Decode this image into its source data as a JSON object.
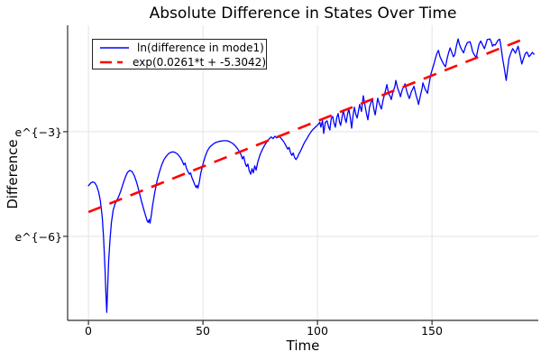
{
  "title": "Absolute Difference in States Over Time",
  "chart_data": {
    "type": "line",
    "title": "Absolute Difference in States Over Time",
    "xlabel": "Time",
    "ylabel": "Difference",
    "yscale": "log-e",
    "grid": true,
    "xlim": [
      -9.1,
      196.4
    ],
    "ylim_ln": [
      -8.41,
      0.05
    ],
    "xticks": [
      {
        "value": 0,
        "label": "0"
      },
      {
        "value": 50,
        "label": "50"
      },
      {
        "value": 100,
        "label": "100"
      },
      {
        "value": 150,
        "label": "150"
      }
    ],
    "yticks": [
      {
        "value": -3,
        "label": "e^{−3}"
      },
      {
        "value": -6,
        "label": "e^{−6}"
      }
    ],
    "legend": {
      "position": "top-left",
      "entries": [
        {
          "label": "ln(difference in mode1)",
          "color": "#0000ff",
          "style": "solid"
        },
        {
          "label": "exp(0.0261*t + -5.3042)",
          "color": "#ff0000",
          "style": "dash"
        }
      ]
    },
    "style": {
      "grid_color": "#e3e3e3",
      "spine_color": "#2f2f2f",
      "background": "#ffffff"
    },
    "series": [
      {
        "name": "ln(difference in mode1)",
        "type": "line",
        "color": "#0000ff",
        "note": "values are ln(|difference|), sampled from plot",
        "points": [
          [
            0,
            -4.55
          ],
          [
            1,
            -4.47
          ],
          [
            2,
            -4.44
          ],
          [
            2.8,
            -4.47
          ],
          [
            3.6,
            -4.56
          ],
          [
            4.4,
            -4.72
          ],
          [
            5.2,
            -4.98
          ],
          [
            6,
            -5.45
          ],
          [
            6.6,
            -6.05
          ],
          [
            7.2,
            -6.9
          ],
          [
            7.6,
            -7.6
          ],
          [
            8,
            -8.18
          ],
          [
            8.4,
            -7.4
          ],
          [
            8.8,
            -6.7
          ],
          [
            9.4,
            -6.1
          ],
          [
            10,
            -5.62
          ],
          [
            10.8,
            -5.25
          ],
          [
            11.6,
            -5.07
          ],
          [
            12.4,
            -4.97
          ],
          [
            13.2,
            -4.86
          ],
          [
            14,
            -4.72
          ],
          [
            15,
            -4.52
          ],
          [
            16,
            -4.32
          ],
          [
            17,
            -4.17
          ],
          [
            18,
            -4.11
          ],
          [
            19,
            -4.14
          ],
          [
            20,
            -4.26
          ],
          [
            21,
            -4.45
          ],
          [
            22,
            -4.69
          ],
          [
            23,
            -4.95
          ],
          [
            24,
            -5.2
          ],
          [
            25,
            -5.42
          ],
          [
            25.6,
            -5.55
          ],
          [
            26.1,
            -5.6
          ],
          [
            26.5,
            -5.52
          ],
          [
            26.9,
            -5.62
          ],
          [
            27.4,
            -5.42
          ],
          [
            28,
            -5.12
          ],
          [
            29,
            -4.72
          ],
          [
            30,
            -4.4
          ],
          [
            31,
            -4.15
          ],
          [
            32,
            -3.95
          ],
          [
            33,
            -3.8
          ],
          [
            34,
            -3.7
          ],
          [
            35,
            -3.63
          ],
          [
            36,
            -3.59
          ],
          [
            37,
            -3.58
          ],
          [
            38,
            -3.6
          ],
          [
            39,
            -3.65
          ],
          [
            40,
            -3.73
          ],
          [
            41,
            -3.85
          ],
          [
            41.6,
            -3.95
          ],
          [
            42.2,
            -3.9
          ],
          [
            42.8,
            -4.05
          ],
          [
            43.4,
            -4.14
          ],
          [
            44,
            -4.22
          ],
          [
            44.6,
            -4.18
          ],
          [
            45.2,
            -4.32
          ],
          [
            45.8,
            -4.42
          ],
          [
            46.4,
            -4.52
          ],
          [
            47,
            -4.6
          ],
          [
            47.4,
            -4.54
          ],
          [
            47.8,
            -4.62
          ],
          [
            48.4,
            -4.44
          ],
          [
            49,
            -4.2
          ],
          [
            50,
            -3.93
          ],
          [
            51,
            -3.7
          ],
          [
            52,
            -3.54
          ],
          [
            53,
            -3.44
          ],
          [
            54,
            -3.38
          ],
          [
            55,
            -3.33
          ],
          [
            56,
            -3.3
          ],
          [
            57,
            -3.28
          ],
          [
            58,
            -3.27
          ],
          [
            59,
            -3.26
          ],
          [
            60,
            -3.26
          ],
          [
            61,
            -3.27
          ],
          [
            62,
            -3.3
          ],
          [
            63,
            -3.34
          ],
          [
            64,
            -3.4
          ],
          [
            65,
            -3.48
          ],
          [
            66,
            -3.58
          ],
          [
            66.6,
            -3.66
          ],
          [
            67.2,
            -3.78
          ],
          [
            67.8,
            -3.71
          ],
          [
            68.4,
            -3.9
          ],
          [
            69,
            -4.0
          ],
          [
            69.6,
            -3.93
          ],
          [
            70.2,
            -4.12
          ],
          [
            70.8,
            -4.22
          ],
          [
            71.4,
            -4.06
          ],
          [
            72,
            -4.18
          ],
          [
            72.6,
            -3.98
          ],
          [
            73.2,
            -4.1
          ],
          [
            73.8,
            -3.9
          ],
          [
            74.4,
            -3.77
          ],
          [
            75,
            -3.65
          ],
          [
            76,
            -3.5
          ],
          [
            77,
            -3.38
          ],
          [
            78,
            -3.28
          ],
          [
            79,
            -3.2
          ],
          [
            79.8,
            -3.15
          ],
          [
            80.6,
            -3.2
          ],
          [
            81.4,
            -3.13
          ],
          [
            82.2,
            -3.18
          ],
          [
            83,
            -3.12
          ],
          [
            83.8,
            -3.17
          ],
          [
            84.6,
            -3.23
          ],
          [
            85.4,
            -3.3
          ],
          [
            86.2,
            -3.4
          ],
          [
            87,
            -3.5
          ],
          [
            87.6,
            -3.45
          ],
          [
            88.2,
            -3.6
          ],
          [
            88.8,
            -3.68
          ],
          [
            89.4,
            -3.61
          ],
          [
            90,
            -3.74
          ],
          [
            90.6,
            -3.8
          ],
          [
            91.2,
            -3.74
          ],
          [
            91.8,
            -3.65
          ],
          [
            92.4,
            -3.58
          ],
          [
            93,
            -3.5
          ],
          [
            93.8,
            -3.38
          ],
          [
            94.6,
            -3.28
          ],
          [
            95.4,
            -3.2
          ],
          [
            96.2,
            -3.1
          ],
          [
            97,
            -3.02
          ],
          [
            97.8,
            -2.95
          ],
          [
            98.6,
            -2.9
          ],
          [
            99.4,
            -2.85
          ],
          [
            100.2,
            -2.8
          ],
          [
            101,
            -2.73
          ],
          [
            101.5,
            -2.87
          ],
          [
            102.2,
            -2.68
          ],
          [
            102.7,
            -3.05
          ],
          [
            103.4,
            -2.73
          ],
          [
            104.2,
            -2.69
          ],
          [
            104.8,
            -2.85
          ],
          [
            105.4,
            -2.95
          ],
          [
            106,
            -2.62
          ],
          [
            106.6,
            -2.56
          ],
          [
            107.2,
            -2.75
          ],
          [
            107.8,
            -2.87
          ],
          [
            108.4,
            -2.6
          ],
          [
            109,
            -2.48
          ],
          [
            109.6,
            -2.72
          ],
          [
            110.1,
            -2.82
          ],
          [
            110.8,
            -2.55
          ],
          [
            111.3,
            -2.4
          ],
          [
            112,
            -2.62
          ],
          [
            112.5,
            -2.74
          ],
          [
            113.1,
            -2.5
          ],
          [
            113.7,
            -2.35
          ],
          [
            114.3,
            -2.6
          ],
          [
            114.9,
            -2.9
          ],
          [
            115.5,
            -2.55
          ],
          [
            116.1,
            -2.3
          ],
          [
            116.7,
            -2.5
          ],
          [
            117.3,
            -2.61
          ],
          [
            117.9,
            -2.4
          ],
          [
            118.4,
            -2.22
          ],
          [
            119.2,
            -2.42
          ],
          [
            120,
            -1.97
          ],
          [
            120.6,
            -2.2
          ],
          [
            121.3,
            -2.45
          ],
          [
            122,
            -2.66
          ],
          [
            122.7,
            -2.3
          ],
          [
            123.4,
            -2.15
          ],
          [
            124,
            -2.09
          ],
          [
            124.6,
            -2.35
          ],
          [
            125.2,
            -2.52
          ],
          [
            125.8,
            -2.25
          ],
          [
            126.3,
            -2.04
          ],
          [
            127,
            -2.2
          ],
          [
            127.9,
            -2.35
          ],
          [
            128.6,
            -2.1
          ],
          [
            129.4,
            -1.9
          ],
          [
            130.3,
            -1.65
          ],
          [
            131,
            -1.9
          ],
          [
            131.8,
            -2.0
          ],
          [
            132.2,
            -2.08
          ],
          [
            133,
            -1.85
          ],
          [
            133.8,
            -1.7
          ],
          [
            134.2,
            -1.53
          ],
          [
            135,
            -1.75
          ],
          [
            135.8,
            -1.9
          ],
          [
            136.2,
            -2.0
          ],
          [
            137,
            -1.8
          ],
          [
            137.8,
            -1.7
          ],
          [
            138.2,
            -1.63
          ],
          [
            139,
            -1.85
          ],
          [
            139.8,
            -2.0
          ],
          [
            140.1,
            -2.05
          ],
          [
            141,
            -1.85
          ],
          [
            141.8,
            -1.75
          ],
          [
            142.1,
            -1.7
          ],
          [
            143,
            -1.95
          ],
          [
            143.7,
            -2.1
          ],
          [
            144.1,
            -2.22
          ],
          [
            145,
            -1.95
          ],
          [
            145.7,
            -1.75
          ],
          [
            146,
            -1.6
          ],
          [
            147,
            -1.78
          ],
          [
            148,
            -1.9
          ],
          [
            148.8,
            -1.6
          ],
          [
            149.5,
            -1.35
          ],
          [
            150.2,
            -1.2
          ],
          [
            150.9,
            -1.05
          ],
          [
            151.5,
            -0.9
          ],
          [
            152.2,
            -0.75
          ],
          [
            152.8,
            -0.67
          ],
          [
            153.5,
            -0.85
          ],
          [
            154.2,
            -0.95
          ],
          [
            154.9,
            -1.05
          ],
          [
            155.9,
            -1.14
          ],
          [
            156.6,
            -0.9
          ],
          [
            157.3,
            -0.72
          ],
          [
            157.9,
            -0.6
          ],
          [
            158.6,
            -0.72
          ],
          [
            159.3,
            -0.85
          ],
          [
            159.9,
            -0.8
          ],
          [
            160.6,
            -0.55
          ],
          [
            161.4,
            -0.34
          ],
          [
            162,
            -0.5
          ],
          [
            162.6,
            -0.6
          ],
          [
            163.2,
            -0.68
          ],
          [
            163.8,
            -0.74
          ],
          [
            164.5,
            -0.58
          ],
          [
            165.4,
            -0.45
          ],
          [
            166,
            -0.43
          ],
          [
            166.6,
            -0.42
          ],
          [
            167.2,
            -0.55
          ],
          [
            167.7,
            -0.7
          ],
          [
            168.5,
            -0.8
          ],
          [
            169.3,
            -0.88
          ],
          [
            169.9,
            -0.68
          ],
          [
            170.5,
            -0.5
          ],
          [
            171.3,
            -0.4
          ],
          [
            172,
            -0.5
          ],
          [
            172.9,
            -0.62
          ],
          [
            173.5,
            -0.5
          ],
          [
            174.1,
            -0.36
          ],
          [
            174.7,
            -0.35
          ],
          [
            175.3,
            -0.34
          ],
          [
            176,
            -0.45
          ],
          [
            176.4,
            -0.55
          ],
          [
            177,
            -0.5
          ],
          [
            177.6,
            -0.52
          ],
          [
            178.2,
            -0.45
          ],
          [
            178.8,
            -0.38
          ],
          [
            179.6,
            -0.35
          ],
          [
            180.2,
            -0.6
          ],
          [
            180.8,
            -0.9
          ],
          [
            181.6,
            -1.2
          ],
          [
            182.4,
            -1.53
          ],
          [
            183,
            -1.2
          ],
          [
            183.6,
            -0.9
          ],
          [
            184.4,
            -0.75
          ],
          [
            185.2,
            -0.62
          ],
          [
            186,
            -0.7
          ],
          [
            186.4,
            -0.75
          ],
          [
            187,
            -0.65
          ],
          [
            187.6,
            -0.55
          ],
          [
            188.4,
            -0.8
          ],
          [
            189.2,
            -1.06
          ],
          [
            190,
            -0.9
          ],
          [
            190.8,
            -0.75
          ],
          [
            191.5,
            -0.72
          ],
          [
            192.3,
            -0.85
          ],
          [
            193,
            -0.8
          ],
          [
            193.8,
            -0.73
          ],
          [
            194.5,
            -0.78
          ]
        ]
      },
      {
        "name": "exp(0.0261*t + -5.3042)",
        "type": "fit-line",
        "color": "#ff0000",
        "dash": true,
        "slope": 0.0261,
        "intercept": -5.3042,
        "t_range": [
          0,
          190
        ]
      }
    ]
  }
}
